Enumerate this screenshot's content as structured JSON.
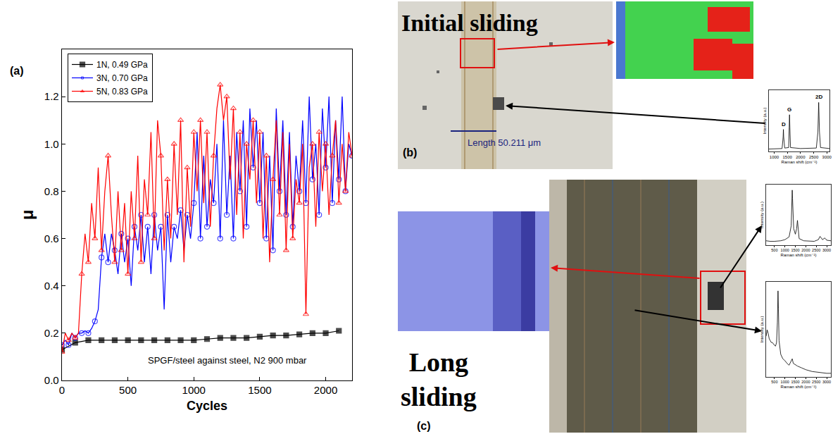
{
  "chart_data": [
    {
      "type": "line",
      "x_label": "Cycles",
      "y_label": "μ",
      "xlim": [
        0,
        2200
      ],
      "xticks": [
        0,
        500,
        1000,
        1500,
        2000
      ],
      "ylim": [
        0,
        1.4
      ],
      "yticks": [
        {
          "value": 0,
          "label": "0.0"
        },
        0.2,
        0.4,
        0.6,
        0.8,
        {
          "value": 1,
          "label": "1.0"
        },
        1.2
      ],
      "grid": false,
      "legend": "upper left",
      "annotations": [
        {
          "text": "SPGF/steel against steel, N2 900 mbar"
        }
      ],
      "series": [
        {
          "name": "1N, 0.49 GPa",
          "color": "#000000",
          "marker": "square",
          "x": [
            0,
            100,
            200,
            300,
            400,
            500,
            600,
            700,
            800,
            900,
            1000,
            1100,
            1200,
            1300,
            1400,
            1500,
            1600,
            1700,
            1800,
            1900,
            2000,
            2100
          ],
          "values": [
            0.13,
            0.16,
            0.17,
            0.17,
            0.17,
            0.17,
            0.17,
            0.17,
            0.17,
            0.17,
            0.17,
            0.175,
            0.18,
            0.18,
            0.18,
            0.185,
            0.19,
            0.19,
            0.195,
            0.2,
            0.2,
            0.21
          ]
        },
        {
          "name": "3N, 0.70 GPa",
          "color": "#0000ff",
          "marker": "circle-open",
          "x": [
            0,
            25,
            50,
            75,
            100,
            125,
            150,
            175,
            200,
            225,
            250,
            275,
            300,
            325,
            350,
            375,
            400,
            425,
            450,
            475,
            500,
            525,
            550,
            575,
            600,
            625,
            650,
            675,
            700,
            725,
            750,
            775,
            800,
            825,
            850,
            875,
            900,
            925,
            950,
            975,
            1000,
            1025,
            1050,
            1075,
            1100,
            1125,
            1150,
            1175,
            1200,
            1225,
            1250,
            1275,
            1300,
            1325,
            1350,
            1375,
            1400,
            1425,
            1450,
            1475,
            1500,
            1525,
            1550,
            1575,
            1600,
            1625,
            1650,
            1675,
            1700,
            1725,
            1750,
            1775,
            1800,
            1825,
            1850,
            1875,
            1900,
            1925,
            1950,
            1975,
            2000,
            2025,
            2050,
            2075,
            2100,
            2125,
            2150,
            2175,
            2200
          ],
          "values": [
            0.15,
            0.17,
            0.15,
            0.2,
            0.18,
            0.2,
            0.2,
            0.21,
            0.2,
            0.22,
            0.25,
            0.3,
            0.52,
            0.62,
            0.5,
            0.62,
            0.55,
            0.45,
            0.62,
            0.5,
            0.6,
            0.4,
            0.65,
            0.55,
            0.7,
            0.5,
            0.65,
            0.45,
            0.7,
            0.55,
            0.65,
            0.3,
            0.7,
            0.5,
            0.65,
            0.6,
            0.72,
            0.55,
            0.7,
            0.6,
            0.75,
            1.05,
            0.6,
            0.95,
            0.65,
            0.85,
            0.75,
            1.0,
            0.6,
            1.1,
            0.7,
            0.95,
            0.6,
            1.05,
            0.8,
            1.1,
            0.65,
            1.15,
            0.9,
            1.1,
            0.75,
            1.05,
            0.6,
            0.95,
            0.55,
            1.15,
            0.8,
            1.1,
            0.7,
            1.05,
            0.65,
            0.95,
            0.8,
            1.1,
            0.75,
            1.2,
            0.85,
            1.0,
            0.7,
            1.15,
            0.9,
            1.2,
            0.75,
            1.1,
            0.85,
            1.2,
            0.8,
            1.0,
            0.95
          ]
        },
        {
          "name": "5N, 0.83 GPa",
          "color": "#ff0000",
          "marker": "triangle-up-open",
          "x": [
            0,
            25,
            50,
            75,
            100,
            125,
            150,
            175,
            200,
            225,
            250,
            275,
            300,
            325,
            350,
            375,
            400,
            425,
            450,
            475,
            500,
            525,
            550,
            575,
            600,
            625,
            650,
            675,
            700,
            725,
            750,
            775,
            800,
            825,
            850,
            875,
            900,
            925,
            950,
            975,
            1000,
            1025,
            1050,
            1075,
            1100,
            1125,
            1150,
            1175,
            1200,
            1225,
            1250,
            1275,
            1300,
            1325,
            1350,
            1375,
            1400,
            1425,
            1450,
            1475,
            1500,
            1525,
            1550,
            1575,
            1600,
            1625,
            1650,
            1675,
            1700,
            1725,
            1750,
            1775,
            1800,
            1825,
            1850,
            1875,
            1900,
            1925,
            1950,
            1975,
            2000,
            2025,
            2050,
            2075,
            2100,
            2125,
            2150,
            2175,
            2200
          ],
          "values": [
            0.12,
            0.2,
            0.17,
            0.2,
            0.18,
            0.2,
            0.45,
            0.62,
            0.5,
            0.75,
            0.6,
            0.9,
            0.55,
            0.8,
            0.95,
            0.7,
            0.5,
            0.8,
            0.55,
            0.75,
            0.45,
            0.8,
            0.6,
            0.95,
            0.5,
            0.85,
            0.7,
            1.05,
            0.6,
            1.1,
            0.95,
            0.55,
            0.85,
            0.6,
            1.0,
            0.7,
            1.1,
            0.5,
            0.9,
            0.65,
            1.05,
            0.8,
            1.1,
            0.75,
            1.05,
            0.65,
            0.95,
            1.15,
            1.25,
            1.1,
            1.2,
            0.85,
            1.15,
            0.7,
            1.05,
            0.6,
            1.0,
            0.85,
            1.1,
            0.75,
            1.05,
            0.6,
            0.95,
            0.5,
            0.85,
            1.1,
            0.7,
            1.05,
            0.55,
            1.0,
            0.6,
            0.85,
            0.75,
            1.0,
            0.28,
            0.9,
            1.0,
            0.65,
            1.05,
            0.8,
            1.0,
            0.7,
            0.95,
            1.1,
            0.75,
            1.0,
            0.8,
            1.05,
            0.95
          ]
        }
      ]
    },
    {
      "type": "line",
      "x_label": "Raman shift (cm⁻¹)",
      "y_label": "Intensity (a.u.)",
      "xlim": [
        800,
        3100
      ],
      "xticks": [
        1000,
        1500,
        2000,
        2500,
        3000
      ],
      "ylim": [
        0,
        1.25
      ],
      "yticks": [],
      "tick_labels": "x",
      "grid": false,
      "annotations": [
        {
          "text": "D",
          "x": 1350,
          "y": 0.45
        },
        {
          "text": "G",
          "x": 1582,
          "y": 0.75
        },
        {
          "text": "2D",
          "x": 2690,
          "y": 1.0
        }
      ],
      "series": [
        {
          "color": "#000000",
          "x": [
            800,
            1000,
            1300,
            1340,
            1350,
            1360,
            1400,
            1550,
            1570,
            1582,
            1595,
            1620,
            2000,
            2600,
            2660,
            2690,
            2720,
            2760,
            3100
          ],
          "values": [
            0.05,
            0.05,
            0.06,
            0.3,
            0.45,
            0.3,
            0.07,
            0.08,
            0.5,
            0.75,
            0.5,
            0.08,
            0.06,
            0.07,
            0.4,
            1.0,
            0.4,
            0.08,
            0.06
          ]
        }
      ]
    },
    {
      "type": "line",
      "x_label": "Raman shift (cm⁻¹)",
      "y_label": "Intensity (a.u.)",
      "xlim": [
        100,
        3200
      ],
      "xticks": [
        500,
        1000,
        1500,
        2000,
        2500,
        3000
      ],
      "ylim": [
        0,
        1.1
      ],
      "yticks": [],
      "tick_labels": "x",
      "grid": false,
      "series": [
        {
          "color": "#000000",
          "x": [
            100,
            300,
            500,
            800,
            1000,
            1200,
            1300,
            1340,
            1350,
            1365,
            1420,
            1500,
            1560,
            1600,
            1620,
            1680,
            1900,
            2400,
            2600,
            2680,
            2720,
            2800,
            2900,
            2940,
            3000,
            3200
          ],
          "values": [
            0.08,
            0.07,
            0.07,
            0.08,
            0.1,
            0.15,
            0.35,
            0.9,
            1.0,
            0.85,
            0.3,
            0.2,
            0.3,
            0.45,
            0.35,
            0.12,
            0.08,
            0.07,
            0.1,
            0.16,
            0.14,
            0.1,
            0.13,
            0.12,
            0.09,
            0.08
          ]
        }
      ]
    },
    {
      "type": "line",
      "x_label": "Raman shift (cm⁻¹)",
      "y_label": "Intensity (a.u.)",
      "xlim": [
        100,
        3200
      ],
      "xticks": [
        500,
        1000,
        1500,
        2000,
        2500,
        3000
      ],
      "ylim": [
        0,
        1.05
      ],
      "yticks": [],
      "tick_labels": "x",
      "grid": false,
      "series": [
        {
          "color": "#000000",
          "x": [
            100,
            150,
            200,
            250,
            300,
            350,
            400,
            450,
            500,
            550,
            600,
            640,
            670,
            690,
            720,
            800,
            900,
            1000,
            1100,
            1200,
            1300,
            1350,
            1400,
            1600,
            1800,
            2000,
            2300,
            2600,
            3000,
            3200
          ],
          "values": [
            0.45,
            0.52,
            0.48,
            0.42,
            0.4,
            0.38,
            0.38,
            0.36,
            0.35,
            0.34,
            0.38,
            0.6,
            0.95,
            0.75,
            0.4,
            0.25,
            0.2,
            0.18,
            0.15,
            0.13,
            0.18,
            0.2,
            0.15,
            0.12,
            0.1,
            0.08,
            0.06,
            0.05,
            0.04,
            0.04
          ]
        }
      ]
    }
  ],
  "panels": {
    "a": {
      "label": "(a)"
    },
    "b": {
      "label": "(b)",
      "title": "Initial sliding",
      "scale_bar": "Length 50.211 μm"
    },
    "c": {
      "label": "(c)",
      "title": "Long sliding"
    }
  }
}
